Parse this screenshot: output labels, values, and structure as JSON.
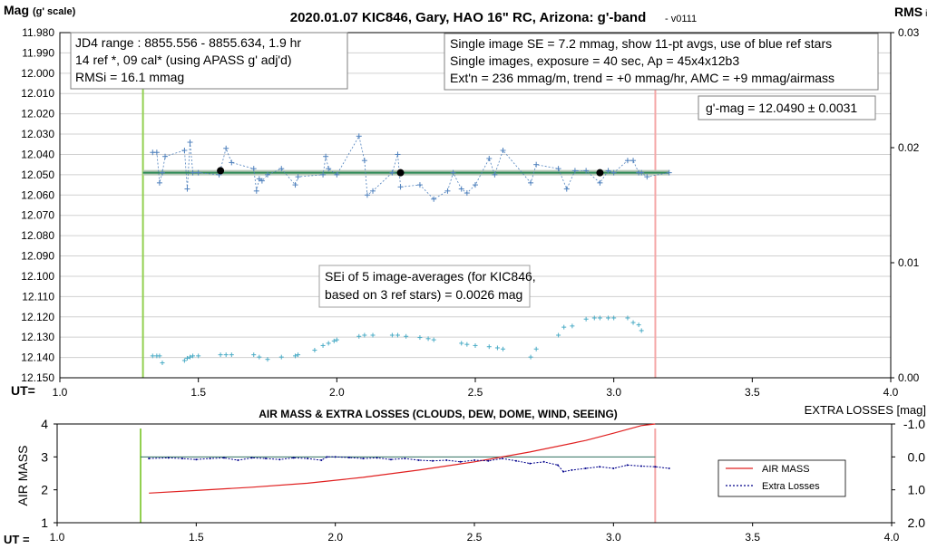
{
  "chart_data": [
    {
      "type": "scatter",
      "title": "2020.01.07 KIC846, Gary, HAO 16\" RC, Arizona: g'-band",
      "version": "- v0111",
      "ylabel_main": "Mag",
      "ylabel_sub": "(g' scale)",
      "y2label_main": "RMS",
      "y2label_sub": "i",
      "xlabel": "UT=",
      "xlim": [
        1.0,
        4.0
      ],
      "ylim": [
        11.98,
        12.15
      ],
      "y_inverted": true,
      "y2lim": [
        0.0,
        0.03
      ],
      "x_ticks": [
        "1.0",
        "1.5",
        "2.0",
        "2.5",
        "3.0",
        "3.5",
        "4.0"
      ],
      "y_ticks": [
        "11.980",
        "11.990",
        "12.000",
        "12.010",
        "12.020",
        "12.030",
        "12.040",
        "12.050",
        "12.060",
        "12.070",
        "12.080",
        "12.090",
        "12.100",
        "12.110",
        "12.120",
        "12.130",
        "12.140",
        "12.150"
      ],
      "y2_ticks": [
        "0.03",
        "0.02",
        "0.01",
        "0.00"
      ],
      "grid": true,
      "vertical_markers": [
        {
          "x": 1.3,
          "color": "#92d050"
        },
        {
          "x": 3.15,
          "color": "#f4a6a6"
        }
      ],
      "mean_line": {
        "y": 12.049,
        "x": [
          1.3,
          3.2
        ]
      },
      "series": [
        {
          "kind": "target-single-images",
          "x": [
            1.335,
            1.35,
            1.36,
            1.37,
            1.38,
            1.45,
            1.46,
            1.47,
            1.48,
            1.5,
            1.575,
            1.6,
            1.62,
            1.7,
            1.71,
            1.72,
            1.73,
            1.75,
            1.8,
            1.85,
            1.86,
            1.95,
            1.96,
            1.97,
            2.0,
            2.08,
            2.1,
            2.11,
            2.13,
            2.2,
            2.22,
            2.23,
            2.3,
            2.35,
            2.4,
            2.42,
            2.45,
            2.47,
            2.5,
            2.55,
            2.57,
            2.6,
            2.7,
            2.72,
            2.8,
            2.83,
            2.86,
            2.9,
            2.95,
            2.98,
            3.0,
            3.05,
            3.07,
            3.09,
            3.1,
            3.12,
            3.2
          ],
          "y": [
            12.039,
            12.039,
            12.054,
            12.049,
            12.041,
            12.038,
            12.057,
            12.034,
            12.049,
            12.049,
            12.05,
            12.037,
            12.044,
            12.047,
            12.058,
            12.052,
            12.053,
            12.05,
            12.047,
            12.055,
            12.051,
            12.05,
            12.041,
            12.047,
            12.05,
            12.031,
            12.043,
            12.06,
            12.058,
            12.049,
            12.04,
            12.056,
            12.055,
            12.062,
            12.058,
            12.049,
            12.057,
            12.059,
            12.055,
            12.042,
            12.05,
            12.038,
            12.054,
            12.045,
            12.047,
            12.057,
            12.048,
            12.048,
            12.054,
            12.048,
            12.049,
            12.043,
            12.043,
            12.049,
            12.049,
            12.051,
            12.049
          ],
          "color": "#4f81bd"
        },
        {
          "kind": "target-5-image-averages",
          "x": [
            1.58,
            2.23,
            2.95
          ],
          "y": [
            12.048,
            12.049,
            12.049
          ],
          "color": "#000000"
        },
        {
          "kind": "rms-i",
          "x": [
            1.335,
            1.35,
            1.36,
            1.37,
            1.45,
            1.46,
            1.47,
            1.48,
            1.5,
            1.58,
            1.6,
            1.62,
            1.7,
            1.72,
            1.75,
            1.8,
            1.85,
            1.86,
            1.92,
            1.95,
            1.97,
            1.99,
            2.0,
            2.08,
            2.1,
            2.13,
            2.2,
            2.22,
            2.25,
            2.3,
            2.33,
            2.35,
            2.45,
            2.47,
            2.5,
            2.55,
            2.58,
            2.6,
            2.7,
            2.72,
            2.8,
            2.82,
            2.85,
            2.9,
            2.93,
            2.95,
            2.98,
            3.0,
            3.05,
            3.07,
            3.09,
            3.1
          ],
          "y": [
            0.0019,
            0.0019,
            0.0019,
            0.0013,
            0.0015,
            0.0017,
            0.0018,
            0.0019,
            0.0019,
            0.002,
            0.002,
            0.002,
            0.002,
            0.0018,
            0.0016,
            0.0018,
            0.0019,
            0.002,
            0.0024,
            0.0028,
            0.003,
            0.0032,
            0.0033,
            0.0036,
            0.0037,
            0.0037,
            0.0037,
            0.0037,
            0.0036,
            0.0035,
            0.0034,
            0.0033,
            0.003,
            0.0029,
            0.0028,
            0.0027,
            0.0026,
            0.0025,
            0.0018,
            0.0025,
            0.0037,
            0.0044,
            0.0045,
            0.0051,
            0.0052,
            0.0052,
            0.0052,
            0.0052,
            0.0052,
            0.0048,
            0.0046,
            0.0041
          ],
          "color": "#4bacc6"
        }
      ],
      "info_box_left": [
        "JD4 range : 8855.556 - 8855.634,  1.9  hr",
        "14 ref *, 09 cal* (using APASS g' adj'd)",
        "RMSi = 16.1 mmag"
      ],
      "info_box_right": [
        "Single image SE = 7.2 mmag, show  11-pt avgs, use of blue ref stars",
        "Single images, exposure = 40 sec, Ap = 45x4x12b3",
        "Ext'n = 236 mmag/m, trend =  +0 mmag/hr, AMC = +9 mmag/airmass"
      ],
      "result_box": "g'-mag = 12.0490 ± 0.0031",
      "sei_box": [
        "SEi of 5 image-averages (for KIC846,",
        "based on 3 ref stars) = 0.0026 mag"
      ]
    },
    {
      "type": "line",
      "title": "AIR MASS & EXTRA LOSSES (CLOUDS, DEW, DOME, WIND, SEEING)",
      "ylabel": "AIR MASS",
      "y2label": "EXTRA LOSSES [mag]",
      "xlabel": "UT =",
      "xlim": [
        1.0,
        4.0
      ],
      "ylim": [
        1,
        4
      ],
      "y2lim": [
        -1.0,
        2.0
      ],
      "y2_inverted": true,
      "x_ticks": [
        "1.0",
        "1.5",
        "2.0",
        "2.5",
        "3.0",
        "3.5",
        "4.0"
      ],
      "y_ticks": [
        "4",
        "3",
        "2",
        "1"
      ],
      "y2_ticks": [
        "-1.0",
        "0.0",
        "1.0",
        "2.0"
      ],
      "vertical_markers": [
        {
          "x": 1.3,
          "color": "#92d050"
        },
        {
          "x": 3.15,
          "color": "#f4a6a6"
        }
      ],
      "reference_line": {
        "y2": 0.0
      },
      "legend": [
        "AIR MASS",
        "Extra Losses"
      ],
      "legend_position": "right",
      "series": [
        {
          "name": "AIR MASS",
          "x": [
            1.33,
            1.5,
            1.7,
            1.9,
            2.1,
            2.3,
            2.5,
            2.7,
            2.9,
            3.0,
            3.1,
            3.15
          ],
          "y": [
            1.9,
            1.98,
            2.08,
            2.2,
            2.38,
            2.6,
            2.85,
            3.15,
            3.5,
            3.72,
            3.95,
            4.0
          ],
          "color": "#e02020"
        },
        {
          "name": "Extra Losses",
          "x": [
            1.33,
            1.4,
            1.45,
            1.5,
            1.55,
            1.6,
            1.65,
            1.7,
            1.75,
            1.8,
            1.85,
            1.9,
            1.95,
            1.97,
            2.0,
            2.05,
            2.1,
            2.15,
            2.2,
            2.25,
            2.3,
            2.35,
            2.4,
            2.45,
            2.5,
            2.55,
            2.6,
            2.65,
            2.7,
            2.75,
            2.8,
            2.82,
            2.85,
            2.9,
            2.95,
            3.0,
            3.05,
            3.1,
            3.15,
            3.2
          ],
          "y": [
            0.05,
            0.03,
            0.05,
            0.08,
            0.05,
            0.03,
            0.1,
            0.03,
            0.05,
            0.08,
            0.03,
            0.05,
            0.1,
            0.0,
            0.0,
            0.02,
            0.05,
            0.03,
            0.08,
            0.05,
            0.1,
            0.12,
            0.1,
            0.15,
            0.1,
            0.12,
            0.05,
            0.12,
            0.2,
            0.15,
            0.25,
            0.45,
            0.4,
            0.35,
            0.3,
            0.35,
            0.25,
            0.28,
            0.3,
            0.35
          ],
          "color": "#00008b"
        }
      ]
    }
  ]
}
